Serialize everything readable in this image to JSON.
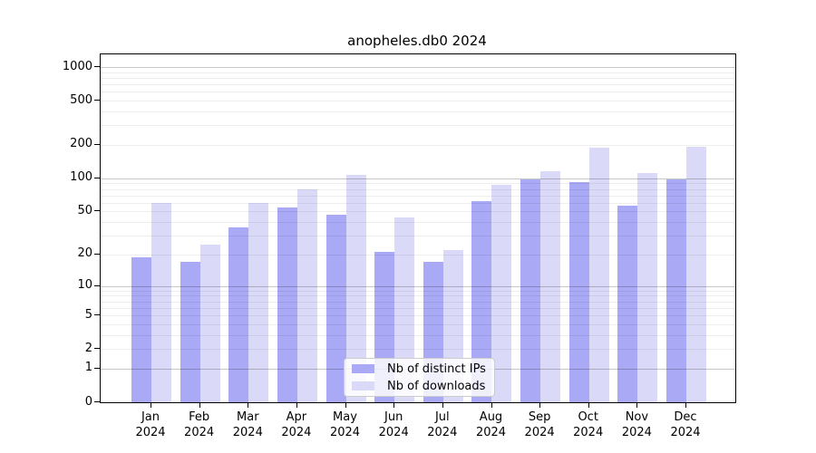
{
  "title": "anopheles.db0 2024",
  "colors": {
    "ips_bar": "#a9a9f5",
    "downloads_bar": "#dadaf8",
    "axis": "#000000",
    "grid_major": "#c7c7c7",
    "grid_minor": "#f0f0f0",
    "legend_border": "#cccccc"
  },
  "chart_data": {
    "type": "bar",
    "title": "anopheles.db0 2024",
    "categories": [
      "Jan",
      "Feb",
      "Mar",
      "Apr",
      "May",
      "Jun",
      "Jul",
      "Aug",
      "Sep",
      "Oct",
      "Nov",
      "Dec"
    ],
    "x_tick_second_line": "2024",
    "series": [
      {
        "name": "Nb of distinct IPs",
        "color": "#a9a9f5",
        "values": [
          19,
          17,
          36,
          54,
          47,
          21,
          17,
          62,
          98,
          92,
          57,
          97
        ]
      },
      {
        "name": "Nb of downloads",
        "color": "#dadaf8",
        "values": [
          60,
          25,
          60,
          80,
          108,
          44,
          22,
          87,
          116,
          188,
          112,
          193
        ]
      }
    ],
    "y_ticks": [
      0,
      1,
      2,
      5,
      10,
      20,
      50,
      100,
      200,
      500,
      1000
    ],
    "y_scale": "log10(1+x)",
    "ylim": [
      0,
      1200
    ],
    "xlabel": "",
    "ylabel": "",
    "grid": "major decades dark, log minors faint",
    "legend_position": "inside-bottom-center"
  }
}
